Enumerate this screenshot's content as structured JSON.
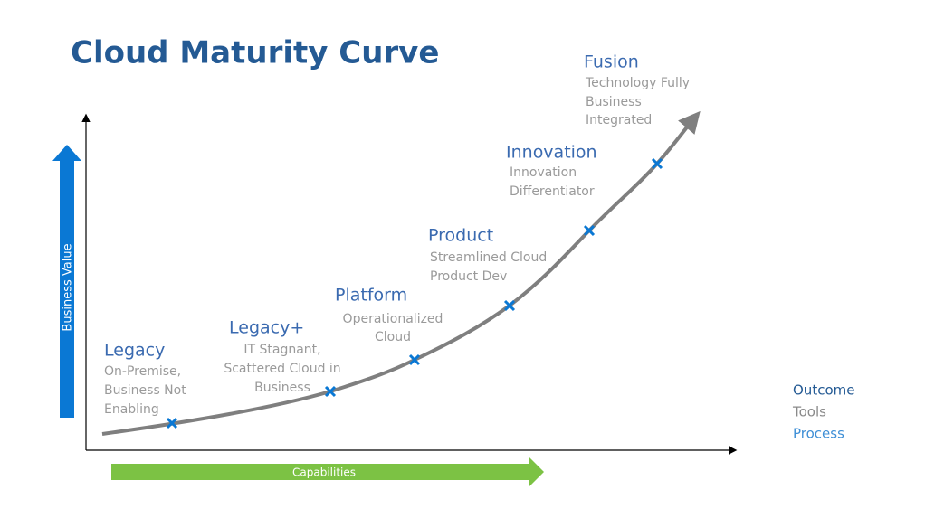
{
  "title": "Cloud Maturity Curve",
  "y_axis_label": "Business Value",
  "x_axis_label": "Capabilities",
  "stages": [
    {
      "name": "Legacy",
      "description": [
        "On-Premise,",
        "Business Not",
        "Enabling"
      ]
    },
    {
      "name": "Legacy+",
      "description": [
        "IT Stagnant,",
        "Scattered Cloud in",
        "Business"
      ]
    },
    {
      "name": "Platform",
      "description": [
        "Operationalized",
        "Cloud"
      ]
    },
    {
      "name": "Product",
      "description": [
        "Streamlined Cloud",
        "Product Dev"
      ]
    },
    {
      "name": "Innovation",
      "description": [
        "Innovation",
        "Differentiator"
      ]
    },
    {
      "name": "Fusion",
      "description": [
        "Technology Fully",
        "Business",
        "Integrated"
      ]
    }
  ],
  "legend": [
    "Outcome",
    "Tools",
    "Process"
  ]
}
